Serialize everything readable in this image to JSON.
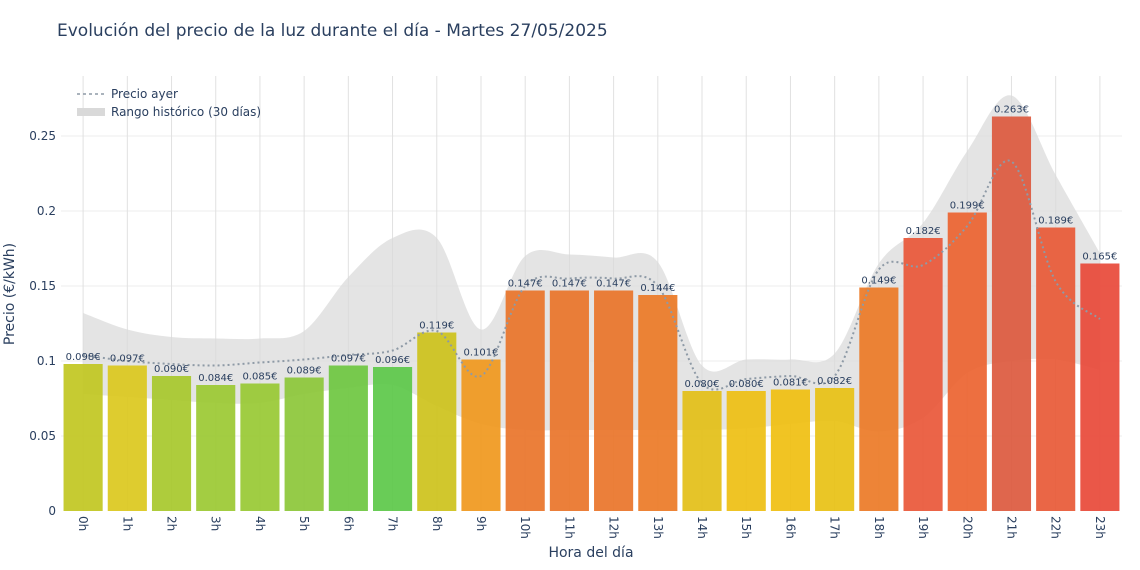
{
  "chart_data": {
    "type": "bar",
    "title": "Evolución del precio de la luz durante el día - Martes 27/05/2025",
    "xlabel": "Hora del día",
    "ylabel": "Precio (€/kWh)",
    "ylim": [
      0,
      0.29
    ],
    "yticks": [
      0,
      0.05,
      0.1,
      0.15,
      0.2,
      0.25
    ],
    "ytick_labels": [
      "0",
      "0.05",
      "0.1",
      "0.15",
      "0.2",
      "0.25"
    ],
    "grid": true,
    "legend_position": "top-left",
    "categories": [
      "0h",
      "1h",
      "2h",
      "3h",
      "4h",
      "5h",
      "6h",
      "7h",
      "8h",
      "9h",
      "10h",
      "11h",
      "12h",
      "13h",
      "14h",
      "15h",
      "16h",
      "17h",
      "18h",
      "19h",
      "20h",
      "21h",
      "22h",
      "23h"
    ],
    "values": [
      0.098,
      0.097,
      0.09,
      0.084,
      0.085,
      0.089,
      0.097,
      0.096,
      0.119,
      0.101,
      0.147,
      0.147,
      0.147,
      0.144,
      0.08,
      0.08,
      0.081,
      0.082,
      0.149,
      0.182,
      0.199,
      0.263,
      0.189,
      0.165
    ],
    "value_labels": [
      "0.098€",
      "0.097€",
      "0.090€",
      "0.084€",
      "0.085€",
      "0.089€",
      "0.097€",
      "0.096€",
      "0.119€",
      "0.101€",
      "0.147€",
      "0.147€",
      "0.147€",
      "0.144€",
      "0.080€",
      "0.080€",
      "0.081€",
      "0.082€",
      "0.149€",
      "0.182€",
      "0.199€",
      "0.263€",
      "0.189€",
      "0.165€"
    ],
    "bar_colors": [
      "#c2c722",
      "#dcc81f",
      "#a8c82d",
      "#9cc934",
      "#99c935",
      "#8dc73a",
      "#6fc742",
      "#5ec84a",
      "#cdc31d",
      "#f0991f",
      "#e9752b",
      "#e9752b",
      "#e9752b",
      "#ec7b28",
      "#e3bf19",
      "#eebf14",
      "#f0bf12",
      "#e8c215",
      "#ec7b28",
      "#e9583a",
      "#ec6432",
      "#dd5a40",
      "#e85a38",
      "#e84a3a"
    ],
    "series": [
      {
        "name": "Precio ayer",
        "style": "dotted-line",
        "color": "#8e9aa6",
        "values": [
          0.104,
          0.1,
          0.098,
          0.097,
          0.099,
          0.101,
          0.104,
          0.107,
          0.12,
          0.09,
          0.15,
          0.155,
          0.155,
          0.15,
          0.085,
          0.088,
          0.09,
          0.09,
          0.161,
          0.164,
          0.19,
          0.233,
          0.153,
          0.128
        ]
      },
      {
        "name": "Rango histórico (30 días)",
        "style": "band",
        "color": "#d9d9d9",
        "upper": [
          0.132,
          0.121,
          0.116,
          0.115,
          0.115,
          0.12,
          0.156,
          0.182,
          0.182,
          0.121,
          0.17,
          0.171,
          0.169,
          0.166,
          0.097,
          0.101,
          0.101,
          0.105,
          0.165,
          0.192,
          0.24,
          0.277,
          0.224,
          0.172
        ],
        "lower": [
          0.078,
          0.076,
          0.074,
          0.072,
          0.072,
          0.078,
          0.082,
          0.084,
          0.07,
          0.058,
          0.054,
          0.054,
          0.054,
          0.054,
          0.054,
          0.055,
          0.058,
          0.06,
          0.053,
          0.062,
          0.092,
          0.1,
          0.101,
          0.094
        ]
      }
    ]
  }
}
